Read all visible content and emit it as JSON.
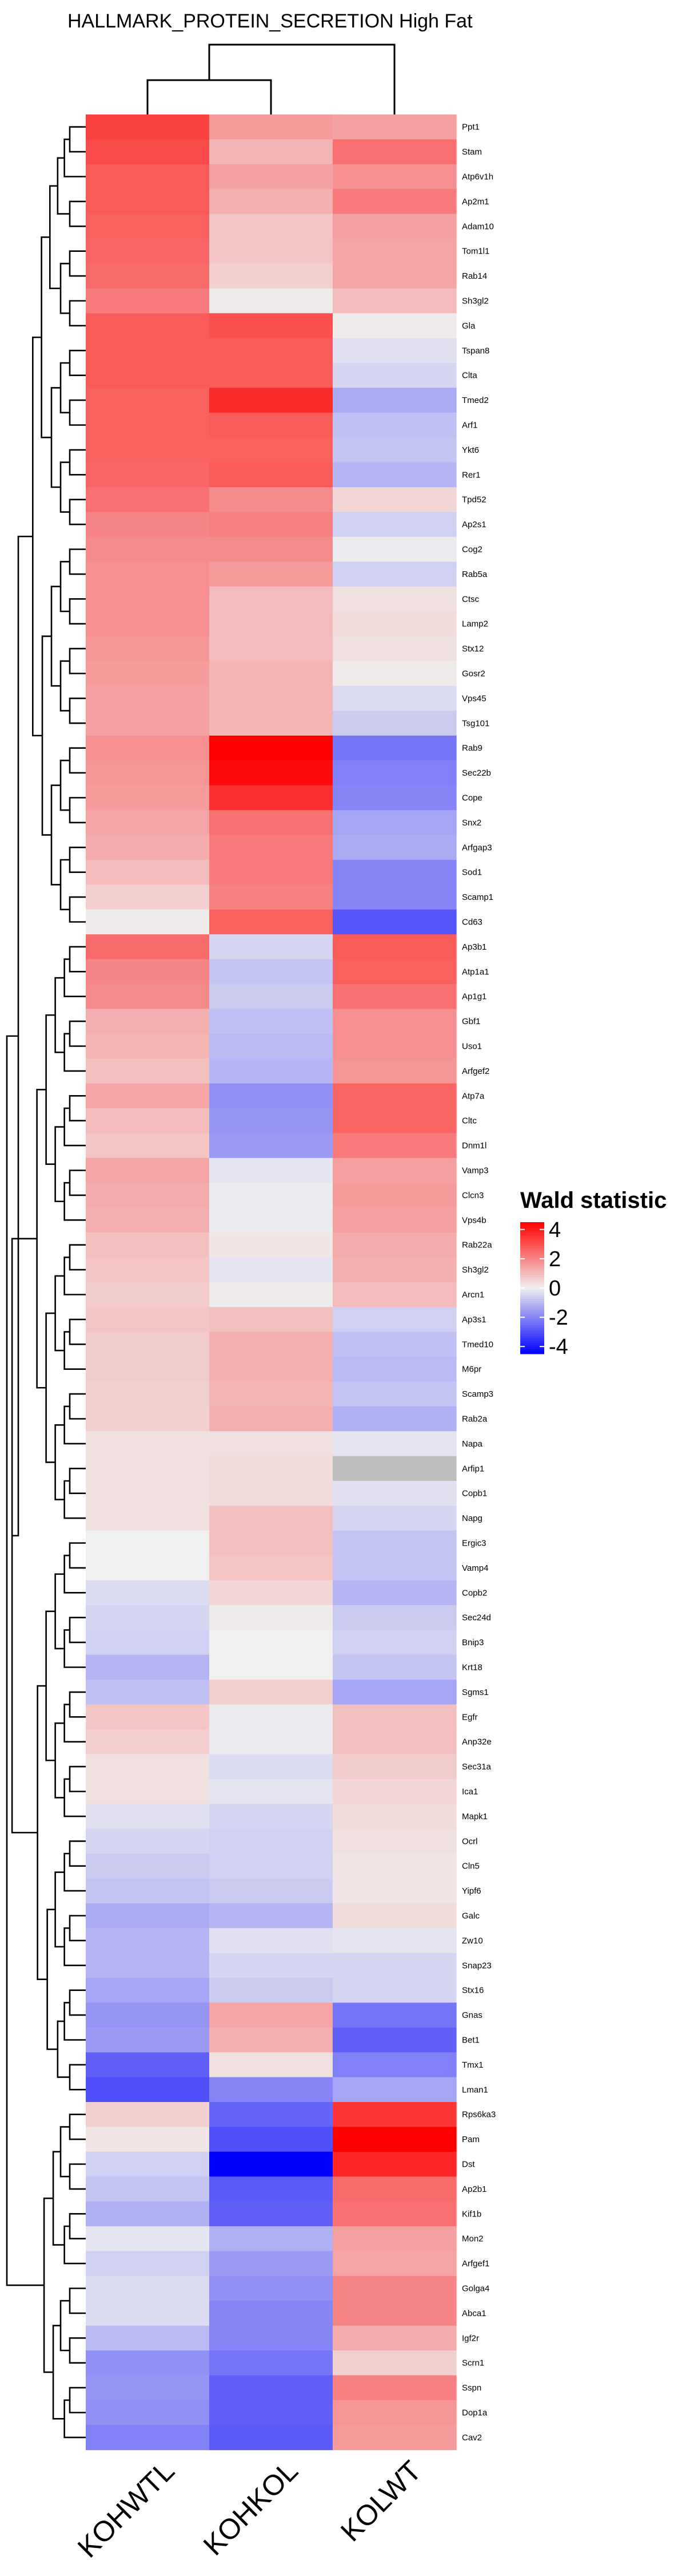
{
  "chart_data": {
    "type": "heatmap",
    "title": "HALLMARK_PROTEIN_SECRETION High Fat",
    "columns": [
      "KOHWTL",
      "KOHKOL",
      "KOLWT"
    ],
    "rows": [
      "Ppt1",
      "Stam",
      "Atp6v1h",
      "Ap2m1",
      "Adam10",
      "Tom1l1",
      "Rab14",
      "Sh3gl2",
      "Gla",
      "Tspan8",
      "Clta",
      "Tmed2",
      "Arf1",
      "Ykt6",
      "Rer1",
      "Tpd52",
      "Ap2s1",
      "Cog2",
      "Rab5a",
      "Ctsc",
      "Lamp2",
      "Stx12",
      "Gosr2",
      "Vps45",
      "Tsg101",
      "Rab9",
      "Sec22b",
      "Cope",
      "Snx2",
      "Arfgap3",
      "Sod1",
      "Scamp1",
      "Cd63",
      "Ap3b1",
      "Atp1a1",
      "Ap1g1",
      "Gbf1",
      "Uso1",
      "Arfgef2",
      "Atp7a",
      "Cltc",
      "Dnm1l",
      "Vamp3",
      "Clcn3",
      "Vps4b",
      "Rab22a",
      "Sh3gl2",
      "Arcn1",
      "Ap3s1",
      "Tmed10",
      "M6pr",
      "Scamp3",
      "Rab2a",
      "Napa",
      "Arfip1",
      "Copb1",
      "Napg",
      "Ergic3",
      "Vamp4",
      "Copb2",
      "Sec24d",
      "Bnip3",
      "Krt18",
      "Sgms1",
      "Egfr",
      "Anp32e",
      "Sec31a",
      "Ica1",
      "Mapk1",
      "Ocrl",
      "Cln5",
      "Yipf6",
      "Galc",
      "Zw10",
      "Snap23",
      "Stx16",
      "Gnas",
      "Bet1",
      "Tmx1",
      "Lman1",
      "Rps6ka3",
      "Pam",
      "Dst",
      "Ap2b1",
      "Kif1b",
      "Mon2",
      "Arfgef1",
      "Golga4",
      "Abca1",
      "Igf2r",
      "Scrn1",
      "Sspn",
      "Dop1a",
      "Cav2"
    ],
    "values": [
      [
        3.3,
        1.6,
        1.5
      ],
      [
        3.1,
        1.1,
        2.4
      ],
      [
        2.8,
        1.5,
        1.8
      ],
      [
        2.8,
        1.2,
        2.2
      ],
      [
        2.7,
        0.8,
        1.5
      ],
      [
        2.6,
        0.8,
        1.4
      ],
      [
        2.5,
        0.6,
        1.4
      ],
      [
        2.2,
        0.1,
        1.0
      ],
      [
        2.8,
        3.0,
        0.1
      ],
      [
        2.8,
        2.8,
        -0.3
      ],
      [
        2.8,
        2.8,
        -0.5
      ],
      [
        2.7,
        3.7,
        -1.3
      ],
      [
        2.7,
        2.8,
        -0.9
      ],
      [
        2.7,
        2.7,
        -0.8
      ],
      [
        2.6,
        2.8,
        -1.1
      ],
      [
        2.4,
        1.9,
        0.5
      ],
      [
        2.0,
        2.1,
        -0.6
      ],
      [
        1.9,
        1.9,
        -0.1
      ],
      [
        1.8,
        1.6,
        -0.6
      ],
      [
        1.8,
        1.0,
        0.3
      ],
      [
        1.8,
        1.0,
        0.4
      ],
      [
        1.7,
        1.0,
        0.3
      ],
      [
        1.6,
        1.1,
        0.1
      ],
      [
        1.5,
        1.1,
        -0.4
      ],
      [
        1.5,
        1.1,
        -0.7
      ],
      [
        1.8,
        4.5,
        -2.3
      ],
      [
        1.7,
        4.3,
        -2.1
      ],
      [
        1.6,
        3.6,
        -2.0
      ],
      [
        1.4,
        2.4,
        -1.4
      ],
      [
        1.3,
        2.2,
        -1.3
      ],
      [
        1.0,
        2.2,
        -2.0
      ],
      [
        0.6,
        2.1,
        -2.0
      ],
      [
        0.1,
        2.7,
        -2.9
      ],
      [
        2.5,
        -0.5,
        2.8
      ],
      [
        2.0,
        -0.8,
        2.7
      ],
      [
        1.9,
        -0.7,
        2.4
      ],
      [
        1.2,
        -0.9,
        1.8
      ],
      [
        1.1,
        -1.0,
        1.8
      ],
      [
        0.9,
        -1.1,
        1.7
      ],
      [
        1.4,
        -1.8,
        2.6
      ],
      [
        1.0,
        -1.7,
        2.6
      ],
      [
        0.8,
        -1.6,
        2.2
      ],
      [
        1.4,
        -0.2,
        1.5
      ],
      [
        1.3,
        -0.1,
        1.6
      ],
      [
        1.2,
        -0.1,
        1.5
      ],
      [
        0.9,
        0.2,
        1.3
      ],
      [
        0.8,
        -0.2,
        1.2
      ],
      [
        0.7,
        0.1,
        1.0
      ],
      [
        0.8,
        0.9,
        -0.6
      ],
      [
        0.7,
        1.2,
        -0.9
      ],
      [
        0.7,
        1.2,
        -1.0
      ],
      [
        0.6,
        1.1,
        -0.8
      ],
      [
        0.6,
        1.2,
        -1.2
      ],
      [
        0.3,
        0.3,
        -0.2
      ],
      [
        0.3,
        0.4,
        null
      ],
      [
        0.3,
        0.4,
        -0.3
      ],
      [
        0.3,
        0.9,
        -0.5
      ],
      [
        0.0,
        0.9,
        -0.8
      ],
      [
        0.0,
        0.8,
        -0.8
      ],
      [
        -0.4,
        0.5,
        -1.1
      ],
      [
        -0.5,
        0.1,
        -0.7
      ],
      [
        -0.6,
        0.0,
        -0.6
      ],
      [
        -1.1,
        0.0,
        -0.8
      ],
      [
        -0.9,
        0.6,
        -1.4
      ],
      [
        0.8,
        -0.1,
        0.9
      ],
      [
        0.6,
        -0.1,
        0.9
      ],
      [
        0.3,
        -0.4,
        0.7
      ],
      [
        0.3,
        -0.2,
        0.5
      ],
      [
        -0.3,
        -0.5,
        0.4
      ],
      [
        -0.5,
        -0.6,
        0.3
      ],
      [
        -0.7,
        -0.6,
        0.2
      ],
      [
        -0.8,
        -0.7,
        0.2
      ],
      [
        -1.3,
        -1.1,
        0.4
      ],
      [
        -1.1,
        -0.3,
        -0.2
      ],
      [
        -1.1,
        -0.5,
        -0.5
      ],
      [
        -1.4,
        -0.7,
        -0.5
      ],
      [
        -1.7,
        1.4,
        -2.3
      ],
      [
        -1.6,
        1.2,
        -2.7
      ],
      [
        -2.7,
        0.3,
        -2.1
      ],
      [
        -3.0,
        -2.0,
        -1.4
      ],
      [
        0.6,
        -2.6,
        3.5
      ],
      [
        0.2,
        -3.0,
        4.5
      ],
      [
        -0.6,
        -4.5,
        3.8
      ],
      [
        -0.8,
        -2.8,
        2.5
      ],
      [
        -1.2,
        -2.7,
        2.4
      ],
      [
        -0.2,
        -1.2,
        1.5
      ],
      [
        -0.6,
        -1.6,
        1.4
      ],
      [
        -0.4,
        -1.8,
        2.0
      ],
      [
        -0.4,
        -2.0,
        2.0
      ],
      [
        -1.0,
        -2.0,
        1.3
      ],
      [
        -1.8,
        -2.3,
        0.6
      ],
      [
        -1.7,
        -2.7,
        2.1
      ],
      [
        -1.8,
        -2.7,
        1.7
      ],
      [
        -2.1,
        -2.8,
        1.6
      ]
    ],
    "legend": {
      "title": "Wald statistic",
      "ticks": [
        4,
        2,
        0,
        -2,
        -4
      ],
      "tick_labels": [
        "4",
        "2",
        "0",
        "-2",
        "-4"
      ],
      "range": [
        -4.5,
        4.5
      ],
      "colors": {
        "low": "#0000ff",
        "mid": "#f0f0f0",
        "high": "#ff0000",
        "na": "#bebebe"
      },
      "placement": "right"
    },
    "dendrogram": {
      "columns": "KOHWTL joins KOHKOL first, then KOLWT",
      "rows": "hierarchical clustering on the left side"
    }
  }
}
